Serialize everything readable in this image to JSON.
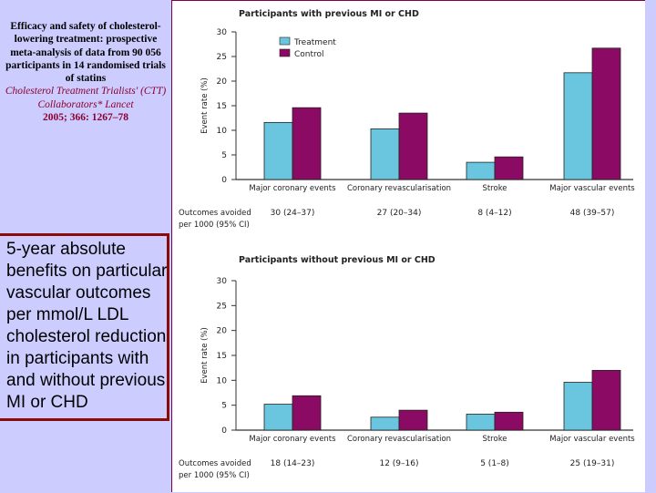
{
  "citation": {
    "title": "Efficacy and safety of cholesterol-lowering treatment: prospective meta-analysis of data from 90 056 participants in 14 randomised trials of statins",
    "authors": "Cholesterol Treatment Trialists' (CTT) Collaborators* Lancet",
    "reference": "2005; 366: 1267–78"
  },
  "description": "5-year absolute benefits on particular vascular outcomes per mmol/L LDL cholesterol reduction in participants with and without previous MI or CHD",
  "colors": {
    "treatment": "#6ac5de",
    "control": "#8a0a64",
    "background": "#ccccff",
    "box_border": "#8b0a0a"
  },
  "chart_data": [
    {
      "type": "bar",
      "title": "Participants with previous MI or CHD",
      "ylabel": "Event rate (%)",
      "ylim": [
        0,
        30
      ],
      "yticks": [
        "0",
        "5",
        "10",
        "15",
        "20",
        "25",
        "30"
      ],
      "categories": [
        "Major coronary events",
        "Coronary revascularisation",
        "Stroke",
        "Major vascular events"
      ],
      "series": [
        {
          "name": "Treatment",
          "values": [
            11.6,
            10.3,
            3.5,
            21.7
          ]
        },
        {
          "name": "Control",
          "values": [
            14.6,
            13.5,
            4.6,
            26.7
          ]
        }
      ],
      "legend": "top-left",
      "outcomes_label": [
        "Outcomes avoided",
        "per 1000 (95% CI)"
      ],
      "outcomes": [
        "30 (24–37)",
        "27 (20–34)",
        "8 (4–12)",
        "48 (39–57)"
      ]
    },
    {
      "type": "bar",
      "title": "Participants without previous MI or CHD",
      "ylabel": "Event rate (%)",
      "ylim": [
        0,
        30
      ],
      "yticks": [
        "0",
        "5",
        "10",
        "15",
        "20",
        "25",
        "30"
      ],
      "categories": [
        "Major coronary events",
        "Coronary revascularisation",
        "Stroke",
        "Major vascular events"
      ],
      "series": [
        {
          "name": "Treatment",
          "values": [
            5.2,
            2.6,
            3.2,
            9.6
          ]
        },
        {
          "name": "Control",
          "values": [
            6.9,
            4.0,
            3.6,
            12.0
          ]
        }
      ],
      "outcomes_label": [
        "Outcomes avoided",
        "per 1000 (95% CI)"
      ],
      "outcomes": [
        "18 (14–23)",
        "12 (9–16)",
        "5 (1–8)",
        "25 (19–31)"
      ]
    }
  ]
}
